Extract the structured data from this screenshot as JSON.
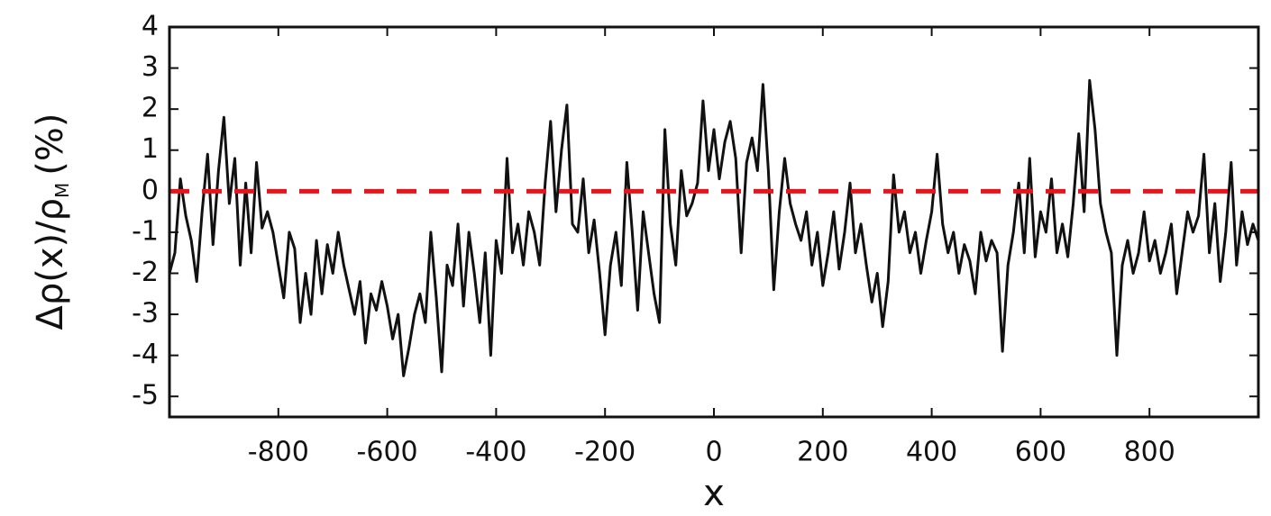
{
  "chart_data": {
    "type": "line",
    "xlabel": "x",
    "ylabel": {
      "main": "Δρ(x)/ρ",
      "sub": "M",
      "unit": "(%)"
    },
    "x": [
      -1000,
      -990,
      -980,
      -970,
      -960,
      -950,
      -940,
      -930,
      -920,
      -910,
      -900,
      -890,
      -880,
      -870,
      -860,
      -850,
      -840,
      -830,
      -820,
      -810,
      -800,
      -790,
      -780,
      -770,
      -760,
      -750,
      -740,
      -730,
      -720,
      -710,
      -700,
      -690,
      -680,
      -670,
      -660,
      -650,
      -640,
      -630,
      -620,
      -610,
      -600,
      -590,
      -580,
      -570,
      -560,
      -550,
      -540,
      -530,
      -520,
      -510,
      -500,
      -490,
      -480,
      -470,
      -460,
      -450,
      -440,
      -430,
      -420,
      -410,
      -400,
      -390,
      -380,
      -370,
      -360,
      -350,
      -340,
      -330,
      -320,
      -310,
      -300,
      -290,
      -280,
      -270,
      -260,
      -250,
      -240,
      -230,
      -220,
      -210,
      -200,
      -190,
      -180,
      -170,
      -160,
      -150,
      -140,
      -130,
      -120,
      -110,
      -100,
      -90,
      -80,
      -70,
      -60,
      -50,
      -40,
      -30,
      -20,
      -10,
      0,
      10,
      20,
      30,
      40,
      50,
      60,
      70,
      80,
      90,
      100,
      110,
      120,
      130,
      140,
      150,
      160,
      170,
      180,
      190,
      200,
      210,
      220,
      230,
      240,
      250,
      260,
      270,
      280,
      290,
      300,
      310,
      320,
      330,
      340,
      350,
      360,
      370,
      380,
      390,
      400,
      410,
      420,
      430,
      440,
      450,
      460,
      470,
      480,
      490,
      500,
      510,
      520,
      530,
      540,
      550,
      560,
      570,
      580,
      590,
      600,
      610,
      620,
      630,
      640,
      650,
      660,
      670,
      680,
      690,
      700,
      710,
      720,
      730,
      740,
      750,
      760,
      770,
      780,
      790,
      800,
      810,
      820,
      830,
      840,
      850,
      860,
      870,
      880,
      890,
      900,
      910,
      920,
      930,
      940,
      950,
      960,
      970,
      980,
      990,
      1000
    ],
    "series": [
      {
        "color": "#111111",
        "values": [
          -2.0,
          -1.5,
          0.3,
          -0.6,
          -1.2,
          -2.2,
          -0.5,
          0.9,
          -1.3,
          0.5,
          1.8,
          -0.3,
          0.8,
          -1.8,
          0.2,
          -1.5,
          0.7,
          -0.9,
          -0.5,
          -1.0,
          -1.8,
          -2.6,
          -1.0,
          -1.4,
          -3.2,
          -2.0,
          -3.0,
          -1.2,
          -2.5,
          -1.3,
          -2.0,
          -1.0,
          -1.8,
          -2.4,
          -3.0,
          -2.2,
          -3.7,
          -2.5,
          -2.9,
          -2.2,
          -2.8,
          -3.6,
          -3.0,
          -4.5,
          -3.8,
          -3.0,
          -2.5,
          -3.2,
          -1.0,
          -2.6,
          -4.4,
          -1.8,
          -2.3,
          -0.8,
          -2.8,
          -1.0,
          -2.0,
          -3.2,
          -1.5,
          -4.0,
          -1.2,
          -2.0,
          0.8,
          -1.5,
          -0.8,
          -1.8,
          -0.5,
          -1.0,
          -1.8,
          0.2,
          1.7,
          -0.5,
          1.0,
          2.1,
          -0.8,
          -1.0,
          0.3,
          -1.5,
          -0.7,
          -2.0,
          -3.5,
          -1.8,
          -1.0,
          -2.3,
          0.7,
          -1.0,
          -2.9,
          -0.5,
          -1.5,
          -2.5,
          -3.2,
          1.5,
          -0.8,
          -1.8,
          0.5,
          -0.6,
          -0.3,
          0.2,
          2.2,
          0.5,
          1.5,
          0.3,
          1.2,
          1.7,
          0.8,
          -1.5,
          0.7,
          1.3,
          0.5,
          2.6,
          0.5,
          -2.4,
          -0.5,
          0.8,
          -0.3,
          -0.8,
          -1.2,
          -0.5,
          -1.8,
          -1.0,
          -2.3,
          -1.5,
          -0.5,
          -1.9,
          -1.0,
          0.2,
          -1.5,
          -0.8,
          -1.8,
          -2.7,
          -2.0,
          -3.3,
          -2.2,
          0.4,
          -1.0,
          -0.5,
          -1.5,
          -1.0,
          -2.0,
          -1.2,
          -0.5,
          0.9,
          -0.8,
          -1.5,
          -1.0,
          -2.0,
          -1.3,
          -1.7,
          -2.5,
          -1.0,
          -1.7,
          -1.2,
          -1.5,
          -3.9,
          -1.8,
          -1.0,
          0.2,
          -1.5,
          0.8,
          -1.6,
          -0.5,
          -1.0,
          0.3,
          -1.5,
          -0.8,
          -1.6,
          -0.3,
          1.4,
          -0.5,
          2.7,
          1.5,
          -0.3,
          -1.0,
          -1.5,
          -4.0,
          -1.8,
          -1.2,
          -2.0,
          -1.5,
          -0.5,
          -1.7,
          -1.2,
          -2.0,
          -1.5,
          -0.8,
          -2.5,
          -1.5,
          -0.5,
          -1.0,
          -0.6,
          0.9,
          -1.5,
          -0.3,
          -2.2,
          -1.0,
          0.7,
          -1.8,
          -0.5,
          -1.3,
          -0.8,
          -1.2
        ]
      }
    ],
    "hline": {
      "value": 0,
      "color": "#e8141b"
    },
    "xlim": [
      -1000,
      1000
    ],
    "xticks": [
      -800,
      -600,
      -400,
      -200,
      0,
      200,
      400,
      600,
      800
    ],
    "ylim": [
      -5.5,
      4
    ],
    "yticks": [
      -5,
      -4,
      -3,
      -2,
      -1,
      0,
      1,
      2,
      3,
      4
    ]
  }
}
